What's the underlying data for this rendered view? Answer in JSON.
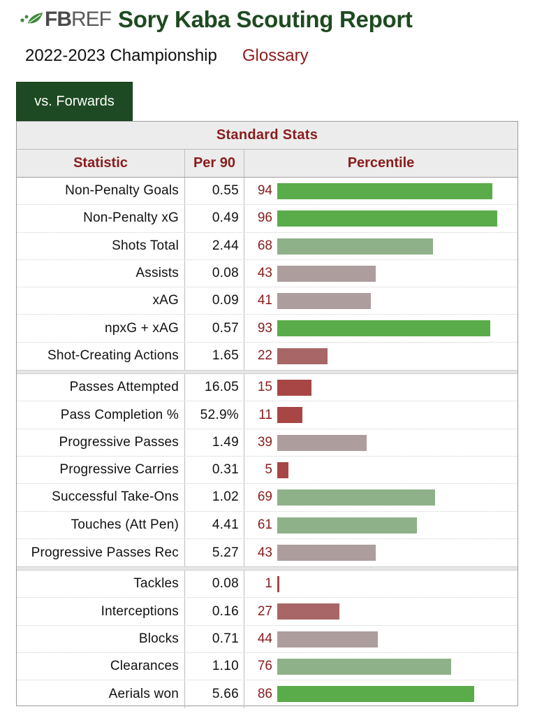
{
  "header": {
    "logo_text_bold": "FB",
    "logo_text_rest": "REF",
    "title": "Sory Kaba Scouting Report"
  },
  "subhead": {
    "season": "2022-2023 Championship",
    "glossary": "Glossary"
  },
  "tab": {
    "label": "vs. Forwards"
  },
  "table": {
    "caption": "Standard Stats",
    "columns": {
      "stat": "Statistic",
      "per90": "Per 90",
      "percentile": "Percentile"
    },
    "groups": [
      [
        {
          "stat": "Non-Penalty Goals",
          "per90": "0.55",
          "percentile": 94
        },
        {
          "stat": "Non-Penalty xG",
          "per90": "0.49",
          "percentile": 96
        },
        {
          "stat": "Shots Total",
          "per90": "2.44",
          "percentile": 68
        },
        {
          "stat": "Assists",
          "per90": "0.08",
          "percentile": 43
        },
        {
          "stat": "xAG",
          "per90": "0.09",
          "percentile": 41
        },
        {
          "stat": "npxG + xAG",
          "per90": "0.57",
          "percentile": 93
        },
        {
          "stat": "Shot-Creating Actions",
          "per90": "1.65",
          "percentile": 22
        }
      ],
      [
        {
          "stat": "Passes Attempted",
          "per90": "16.05",
          "percentile": 15
        },
        {
          "stat": "Pass Completion %",
          "per90": "52.9%",
          "percentile": 11
        },
        {
          "stat": "Progressive Passes",
          "per90": "1.49",
          "percentile": 39
        },
        {
          "stat": "Progressive Carries",
          "per90": "0.31",
          "percentile": 5
        },
        {
          "stat": "Successful Take-Ons",
          "per90": "1.02",
          "percentile": 69
        },
        {
          "stat": "Touches (Att Pen)",
          "per90": "4.41",
          "percentile": 61
        },
        {
          "stat": "Progressive Passes Rec",
          "per90": "5.27",
          "percentile": 43
        }
      ],
      [
        {
          "stat": "Tackles",
          "per90": "0.08",
          "percentile": 1
        },
        {
          "stat": "Interceptions",
          "per90": "0.16",
          "percentile": 27
        },
        {
          "stat": "Blocks",
          "per90": "0.71",
          "percentile": 44
        },
        {
          "stat": "Clearances",
          "per90": "1.10",
          "percentile": 76
        },
        {
          "stat": "Aerials won",
          "per90": "5.66",
          "percentile": 86
        }
      ]
    ]
  },
  "colors": {
    "title_green": "#1e4a20",
    "accent_red": "#8a1c1c",
    "tab_green": "#1d4a22",
    "bar_high": "#5aac4a",
    "bar_mid_high": "#8fb189",
    "bar_mid": "#ad9d9d",
    "bar_mid_low": "#a86666",
    "bar_low": "#a84646"
  }
}
